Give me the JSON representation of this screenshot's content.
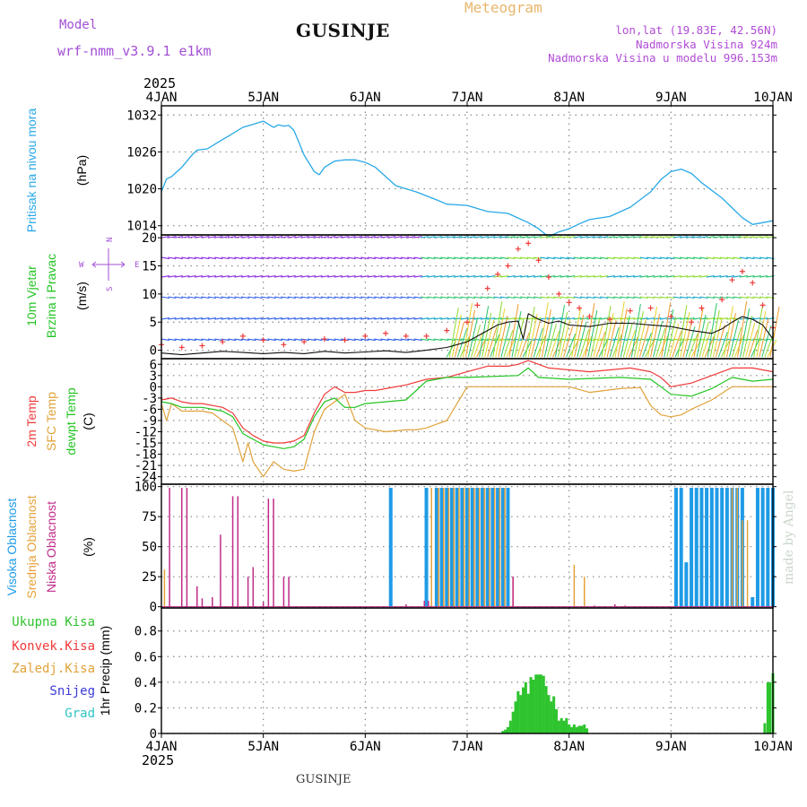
{
  "header": {
    "model_label": "Model",
    "model_name": "wrf-nmm_v3.9.1 e1km",
    "station": "GUSINJE",
    "title": "Meteogram",
    "coords": "lon,lat (19.83E, 42.56N)",
    "elevation": "Nadmorska Visina 924m",
    "model_elevation": "Nadmorska Visina u modelu 996.153m"
  },
  "footer": {
    "station": "GUSINJE",
    "signature": "made by Angel"
  },
  "colors": {
    "pressure": "#29a8e6",
    "temp2m": "#ef3a3a",
    "sfc": "#e0a23a",
    "dewpt": "#22c422",
    "high_cloud": "#1f9be6",
    "mid_cloud": "#e6a23a",
    "low_cloud": "#c02c8a",
    "total_precip": "#2ec42e",
    "wind_line": "#111111",
    "gust_marker": "#ef3a3a",
    "model_text": "#a24fd6"
  },
  "chart_data": [
    {
      "type": "line",
      "panel": "pressure",
      "ylabel_colored": "Pritisak na nivou mora",
      "unit": "(hPa)",
      "yticks": [
        1014,
        1020,
        1026,
        1032
      ],
      "ylim": [
        1012.5,
        1033.5
      ],
      "x_year_top": "2025",
      "x_year_bottom": "2025",
      "x_labels": [
        "4JAN",
        "5JAN",
        "6JAN",
        "7JAN",
        "8JAN",
        "9JAN",
        "10JAN"
      ],
      "grid": true,
      "series": [
        {
          "color_key": "pressure",
          "x": [
            0,
            0.05,
            0.1,
            0.2,
            0.3,
            0.35,
            0.45,
            0.55,
            0.65,
            0.8,
            0.9,
            1.0,
            1.05,
            1.1,
            1.15,
            1.2,
            1.25,
            1.3,
            1.35,
            1.4,
            1.5,
            1.55,
            1.6,
            1.7,
            1.8,
            1.9,
            2.0,
            2.1,
            2.2,
            2.3,
            2.5,
            2.7,
            2.8,
            3.0,
            3.2,
            3.4,
            3.6,
            3.7,
            3.8,
            3.9,
            4.0,
            4.1,
            4.2,
            4.4,
            4.6,
            4.8,
            4.9,
            5.0,
            5.1,
            5.2,
            5.3,
            5.5,
            5.7,
            5.8,
            5.9,
            6.0
          ],
          "y": [
            1019.5,
            1021.6,
            1022.0,
            1023.5,
            1025.5,
            1026.3,
            1026.5,
            1027.5,
            1028.5,
            1030.0,
            1030.5,
            1031.0,
            1030.5,
            1030.0,
            1030.4,
            1030.2,
            1030.3,
            1029.5,
            1027.5,
            1025.5,
            1022.8,
            1022.3,
            1023.5,
            1024.5,
            1024.7,
            1024.7,
            1024.3,
            1023.5,
            1022.0,
            1020.5,
            1019.5,
            1018.2,
            1017.5,
            1017.3,
            1016.3,
            1016.0,
            1014.5,
            1013.5,
            1012.2,
            1013.0,
            1013.5,
            1014.3,
            1015.0,
            1015.5,
            1017.0,
            1019.5,
            1021.5,
            1022.8,
            1023.2,
            1022.5,
            1021.0,
            1018.5,
            1015.3,
            1014.2,
            1014.5,
            1014.8
          ]
        }
      ]
    },
    {
      "type": "line",
      "panel": "wind",
      "ylabel_line1": "10m Vjetar",
      "ylabel_line2": "Brzina i Pravac",
      "unit": "(m/s)",
      "compass_letters": {
        "north": "N",
        "south": "S",
        "west": "W",
        "east": "E"
      },
      "yticks": [
        0,
        5,
        10,
        15,
        20
      ],
      "ylim": [
        -1.5,
        20.5
      ],
      "grid": true,
      "series": [
        {
          "color_key": "wind_line",
          "x": [
            0,
            0.2,
            0.4,
            0.6,
            0.8,
            1.0,
            1.2,
            1.4,
            1.6,
            1.8,
            2.0,
            2.2,
            2.4,
            2.6,
            2.8,
            3.0,
            3.1,
            3.2,
            3.3,
            3.4,
            3.5,
            3.55,
            3.6,
            3.7,
            3.8,
            3.9,
            4.0,
            4.2,
            4.4,
            4.6,
            4.8,
            5.0,
            5.2,
            5.4,
            5.5,
            5.6,
            5.7,
            5.8,
            5.9,
            6.0
          ],
          "y": [
            -0.5,
            -0.8,
            -0.5,
            -0.2,
            -0.4,
            -0.6,
            -0.4,
            -0.6,
            -0.2,
            -0.5,
            -0.3,
            -0.1,
            -0.4,
            0.0,
            0.5,
            1.5,
            2.5,
            3.5,
            4.5,
            5.0,
            5.2,
            2.0,
            6.5,
            5.5,
            4.8,
            5.2,
            4.5,
            4.2,
            4.8,
            4.8,
            4.5,
            4.2,
            3.5,
            3.0,
            3.8,
            5.0,
            6.0,
            5.5,
            4.5,
            2.0
          ]
        }
      ],
      "gusts": {
        "color_key": "gust_marker",
        "x": [
          0,
          0.2,
          0.4,
          0.6,
          0.8,
          1.0,
          1.2,
          1.4,
          1.6,
          1.8,
          2.0,
          2.2,
          2.4,
          2.6,
          2.8,
          3.0,
          3.1,
          3.2,
          3.3,
          3.4,
          3.5,
          3.6,
          3.7,
          3.8,
          3.9,
          4.0,
          4.1,
          4.2,
          4.4,
          4.6,
          4.8,
          5.0,
          5.2,
          5.3,
          5.5,
          5.6,
          5.7,
          5.8,
          5.9,
          6.0
        ],
        "y": [
          1,
          0.5,
          0.8,
          1.5,
          2.5,
          1.8,
          1.0,
          1.5,
          2.0,
          1.8,
          2.5,
          3.0,
          2.5,
          2.5,
          3.5,
          5.0,
          8.0,
          11.0,
          13.5,
          15.0,
          18.0,
          19.0,
          16.0,
          13.0,
          10.0,
          8.5,
          7.5,
          6.0,
          5.5,
          7.0,
          7.5,
          6.0,
          5.0,
          7.5,
          9.0,
          12.5,
          14.0,
          12.0,
          8.0,
          4.0
        ]
      },
      "barb_rows": [
        20,
        16.5,
        13,
        9.5,
        5.5,
        2.0
      ],
      "barb_colors": [
        "#8a2be2",
        "#2f5fe8",
        "#14a6c8",
        "#27c46a",
        "#8cdc2e",
        "#e8d22a",
        "#f09a2a"
      ]
    },
    {
      "type": "line",
      "panel": "temperature",
      "ylabel_2m": "2m Temp",
      "ylabel_sfc": "SFC Temp",
      "ylabel_dew": "dewpt Temp",
      "unit": "(C)",
      "yticks": [
        -24,
        -21,
        -18,
        -15,
        -12,
        -9,
        -6,
        -3,
        0,
        3,
        6
      ],
      "ylim": [
        -26,
        7.5
      ],
      "grid": true,
      "series": [
        {
          "color_key": "temp2m",
          "x": [
            0,
            0.1,
            0.2,
            0.3,
            0.4,
            0.5,
            0.6,
            0.7,
            0.8,
            0.9,
            1.0,
            1.1,
            1.2,
            1.3,
            1.4,
            1.5,
            1.6,
            1.7,
            1.8,
            1.9,
            2.0,
            2.1,
            2.2,
            2.4,
            2.6,
            2.8,
            3.0,
            3.2,
            3.4,
            3.5,
            3.6,
            3.8,
            4.0,
            4.2,
            4.4,
            4.6,
            4.8,
            4.9,
            5.0,
            5.2,
            5.4,
            5.6,
            5.8,
            6.0
          ],
          "y": [
            -3.5,
            -3.0,
            -4.0,
            -4.5,
            -4.5,
            -5.0,
            -5.5,
            -7.0,
            -11.0,
            -13.0,
            -14.5,
            -15.0,
            -15.0,
            -14.5,
            -13.0,
            -7.0,
            -2.0,
            0.0,
            -1.5,
            -1.5,
            -1.0,
            -1.0,
            -0.5,
            0.5,
            2.0,
            2.5,
            4.0,
            5.5,
            5.5,
            6.0,
            7.0,
            5.0,
            4.5,
            4.0,
            4.5,
            5.0,
            4.0,
            2.5,
            0.0,
            1.0,
            3.0,
            5.0,
            5.0,
            4.0
          ]
        },
        {
          "color_key": "sfc",
          "x": [
            0,
            0.05,
            0.1,
            0.15,
            0.2,
            0.3,
            0.4,
            0.5,
            0.6,
            0.65,
            0.7,
            0.8,
            0.85,
            0.9,
            0.95,
            1.0,
            1.05,
            1.1,
            1.15,
            1.2,
            1.3,
            1.4,
            1.5,
            1.6,
            1.7,
            1.8,
            1.9,
            2.0,
            2.2,
            2.4,
            2.5,
            2.6,
            2.7,
            2.8,
            3.0,
            3.5,
            4.0,
            4.2,
            4.5,
            4.7,
            4.8,
            4.9,
            5.0,
            5.1,
            5.2,
            5.4,
            5.6,
            5.8,
            6.0
          ],
          "y": [
            -4.5,
            -9.0,
            -4.5,
            -5.5,
            -6.5,
            -6.5,
            -6.5,
            -7.0,
            -9.0,
            -10.0,
            -11.0,
            -20.0,
            -15.0,
            -20.0,
            -22.0,
            -24.0,
            -22.0,
            -20.0,
            -21.0,
            -22.0,
            -22.5,
            -22.0,
            -12.0,
            -6.0,
            -4.0,
            -2.0,
            -9.0,
            -11.0,
            -12.0,
            -11.5,
            -11.5,
            -11.0,
            -10.0,
            -9.0,
            0.0,
            0.0,
            0.0,
            -1.5,
            -0.5,
            -0.2,
            -5.0,
            -7.5,
            -8.0,
            -7.5,
            -6.0,
            -3.5,
            0.0,
            0.0,
            0.0
          ]
        },
        {
          "color_key": "dewpt",
          "x": [
            0,
            0.1,
            0.2,
            0.3,
            0.4,
            0.5,
            0.6,
            0.7,
            0.8,
            0.9,
            1.0,
            1.1,
            1.2,
            1.3,
            1.4,
            1.5,
            1.6,
            1.7,
            1.8,
            1.9,
            2.0,
            2.2,
            2.4,
            2.5,
            2.6,
            2.8,
            3.0,
            3.5,
            3.6,
            3.7,
            4.0,
            4.5,
            4.8,
            5.0,
            5.2,
            5.4,
            5.6,
            5.8,
            6.0
          ],
          "y": [
            -4.0,
            -4.5,
            -5.5,
            -5.5,
            -5.5,
            -6.0,
            -6.5,
            -8.0,
            -12.5,
            -14.0,
            -15.5,
            -16.0,
            -16.5,
            -16.0,
            -14.0,
            -8.0,
            -4.0,
            -3.0,
            -5.5,
            -5.5,
            -4.5,
            -4.0,
            -3.5,
            -1.0,
            1.5,
            2.5,
            2.5,
            3.0,
            5.0,
            2.5,
            2.0,
            2.5,
            2.0,
            -2.0,
            -2.5,
            -0.5,
            2.5,
            1.5,
            2.0
          ]
        }
      ]
    },
    {
      "type": "bar",
      "panel": "clouds",
      "ylabel_high": "Visoka Oblacnost",
      "ylabel_mid": "Srednja Oblacnost",
      "ylabel_low": "Niska Oblacnost",
      "unit": "(%)",
      "yticks": [
        0,
        25,
        50,
        75,
        100
      ],
      "ylim": [
        -1,
        102
      ],
      "grid": true,
      "series": [
        {
          "name_key": "high",
          "color_key": "high_cloud",
          "x": [
            2.25,
            2.6,
            2.7,
            2.75,
            2.8,
            2.85,
            2.9,
            2.95,
            3.0,
            3.05,
            3.1,
            3.15,
            3.2,
            3.25,
            3.3,
            3.35,
            3.4,
            5.05,
            5.1,
            5.15,
            5.2,
            5.25,
            5.3,
            5.35,
            5.4,
            5.45,
            5.5,
            5.55,
            5.6,
            5.65,
            5.7,
            5.8,
            5.85,
            5.9,
            5.95,
            6.0
          ],
          "values": [
            99,
            99,
            99,
            99,
            99,
            99,
            99,
            99,
            99,
            99,
            99,
            99,
            99,
            99,
            99,
            99,
            99,
            99,
            99,
            37,
            99,
            99,
            99,
            99,
            99,
            99,
            99,
            99,
            99,
            99,
            99,
            8,
            99,
            99,
            99,
            99
          ]
        },
        {
          "name_key": "mid",
          "color_key": "mid_cloud",
          "x": [
            0.03,
            2.65,
            2.72,
            2.77,
            2.82,
            2.87,
            2.92,
            2.97,
            3.02,
            3.07,
            3.12,
            3.17,
            3.22,
            3.27,
            3.32,
            3.37,
            3.45,
            4.05,
            4.15,
            5.6,
            5.65,
            5.7,
            5.75
          ],
          "values": [
            31,
            99,
            99,
            99,
            99,
            99,
            99,
            99,
            99,
            99,
            99,
            99,
            99,
            99,
            99,
            99,
            25,
            35,
            25,
            99,
            99,
            72,
            72
          ]
        },
        {
          "name_key": "low",
          "color_key": "low_cloud",
          "x": [
            0.08,
            0.2,
            0.25,
            0.35,
            0.4,
            0.5,
            0.58,
            0.7,
            0.75,
            0.85,
            0.9,
            1.0,
            1.05,
            1.1,
            1.2,
            1.25,
            2.4,
            2.58,
            2.62,
            3.45,
            4.25,
            4.45,
            4.55
          ],
          "values": [
            99,
            99,
            99,
            17,
            7,
            8,
            60,
            92,
            92,
            25,
            33,
            4,
            90,
            90,
            25,
            25,
            2,
            5,
            5,
            25,
            1,
            2,
            1
          ]
        }
      ]
    },
    {
      "type": "bar",
      "panel": "precip",
      "ylabel_total": "Ukupna Kisa",
      "ylabel_conv": "Konvek.Kisa",
      "ylabel_frozen": "Zaledj.Kisa",
      "ylabel_snow": "Snijeg",
      "ylabel_hail": "Grad",
      "unit": "1hr Precip (mm)",
      "yticks": [
        0,
        0.2,
        0.4,
        0.6,
        0.8
      ],
      "ylim": [
        0,
        0.98
      ],
      "grid": true,
      "series": [
        {
          "name_key": "total",
          "color_key": "total_precip",
          "x": [
            3.35,
            3.375,
            3.4,
            3.425,
            3.45,
            3.475,
            3.5,
            3.525,
            3.55,
            3.575,
            3.6,
            3.625,
            3.65,
            3.675,
            3.7,
            3.725,
            3.75,
            3.775,
            3.8,
            3.825,
            3.85,
            3.875,
            3.9,
            3.925,
            3.95,
            3.975,
            4.0,
            4.025,
            4.05,
            4.075,
            4.1,
            4.125,
            4.15,
            4.175,
            5.92,
            5.95,
            5.97,
            6.0
          ],
          "values": [
            0.02,
            0.03,
            0.05,
            0.1,
            0.17,
            0.25,
            0.33,
            0.3,
            0.36,
            0.4,
            0.31,
            0.44,
            0.42,
            0.46,
            0.46,
            0.46,
            0.45,
            0.37,
            0.3,
            0.25,
            0.29,
            0.19,
            0.1,
            0.12,
            0.1,
            0.12,
            0.07,
            0.05,
            0.07,
            0.05,
            0.06,
            0.06,
            0.07,
            0.04,
            0.08,
            0.4,
            0.4,
            0.47
          ]
        }
      ]
    }
  ]
}
